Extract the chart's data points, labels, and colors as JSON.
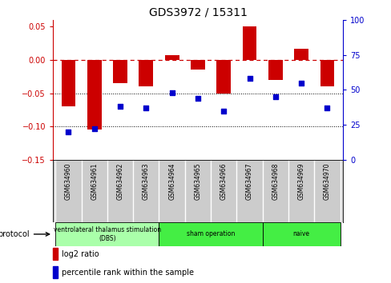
{
  "title": "GDS3972 / 15311",
  "samples": [
    "GSM634960",
    "GSM634961",
    "GSM634962",
    "GSM634963",
    "GSM634964",
    "GSM634965",
    "GSM634966",
    "GSM634967",
    "GSM634968",
    "GSM634969",
    "GSM634970"
  ],
  "log2_ratio": [
    -0.07,
    -0.105,
    -0.035,
    -0.04,
    0.007,
    -0.015,
    -0.05,
    0.05,
    -0.03,
    0.017,
    -0.04
  ],
  "percentile_rank": [
    20,
    22,
    38,
    37,
    48,
    44,
    35,
    58,
    45,
    55,
    37
  ],
  "bar_color": "#cc0000",
  "dot_color": "#0000cc",
  "ylim_left": [
    -0.15,
    0.06
  ],
  "ylim_right": [
    0,
    100
  ],
  "yticks_left": [
    0.05,
    0,
    -0.05,
    -0.1,
    -0.15
  ],
  "yticks_right": [
    100,
    75,
    50,
    25,
    0
  ],
  "dotted_lines": [
    -0.05,
    -0.1
  ],
  "protocol_groups": [
    {
      "label": "ventrolateral thalamus stimulation\n(DBS)",
      "start": 0,
      "end": 3,
      "color": "#aaffaa"
    },
    {
      "label": "sham operation",
      "start": 4,
      "end": 7,
      "color": "#44ee44"
    },
    {
      "label": "naive",
      "start": 8,
      "end": 10,
      "color": "#44ee44"
    }
  ],
  "legend_bar_label": "log2 ratio",
  "legend_dot_label": "percentile rank within the sample",
  "protocol_label": "protocol",
  "bg": "#ffffff",
  "label_bg": "#cccccc",
  "bar_width": 0.55
}
